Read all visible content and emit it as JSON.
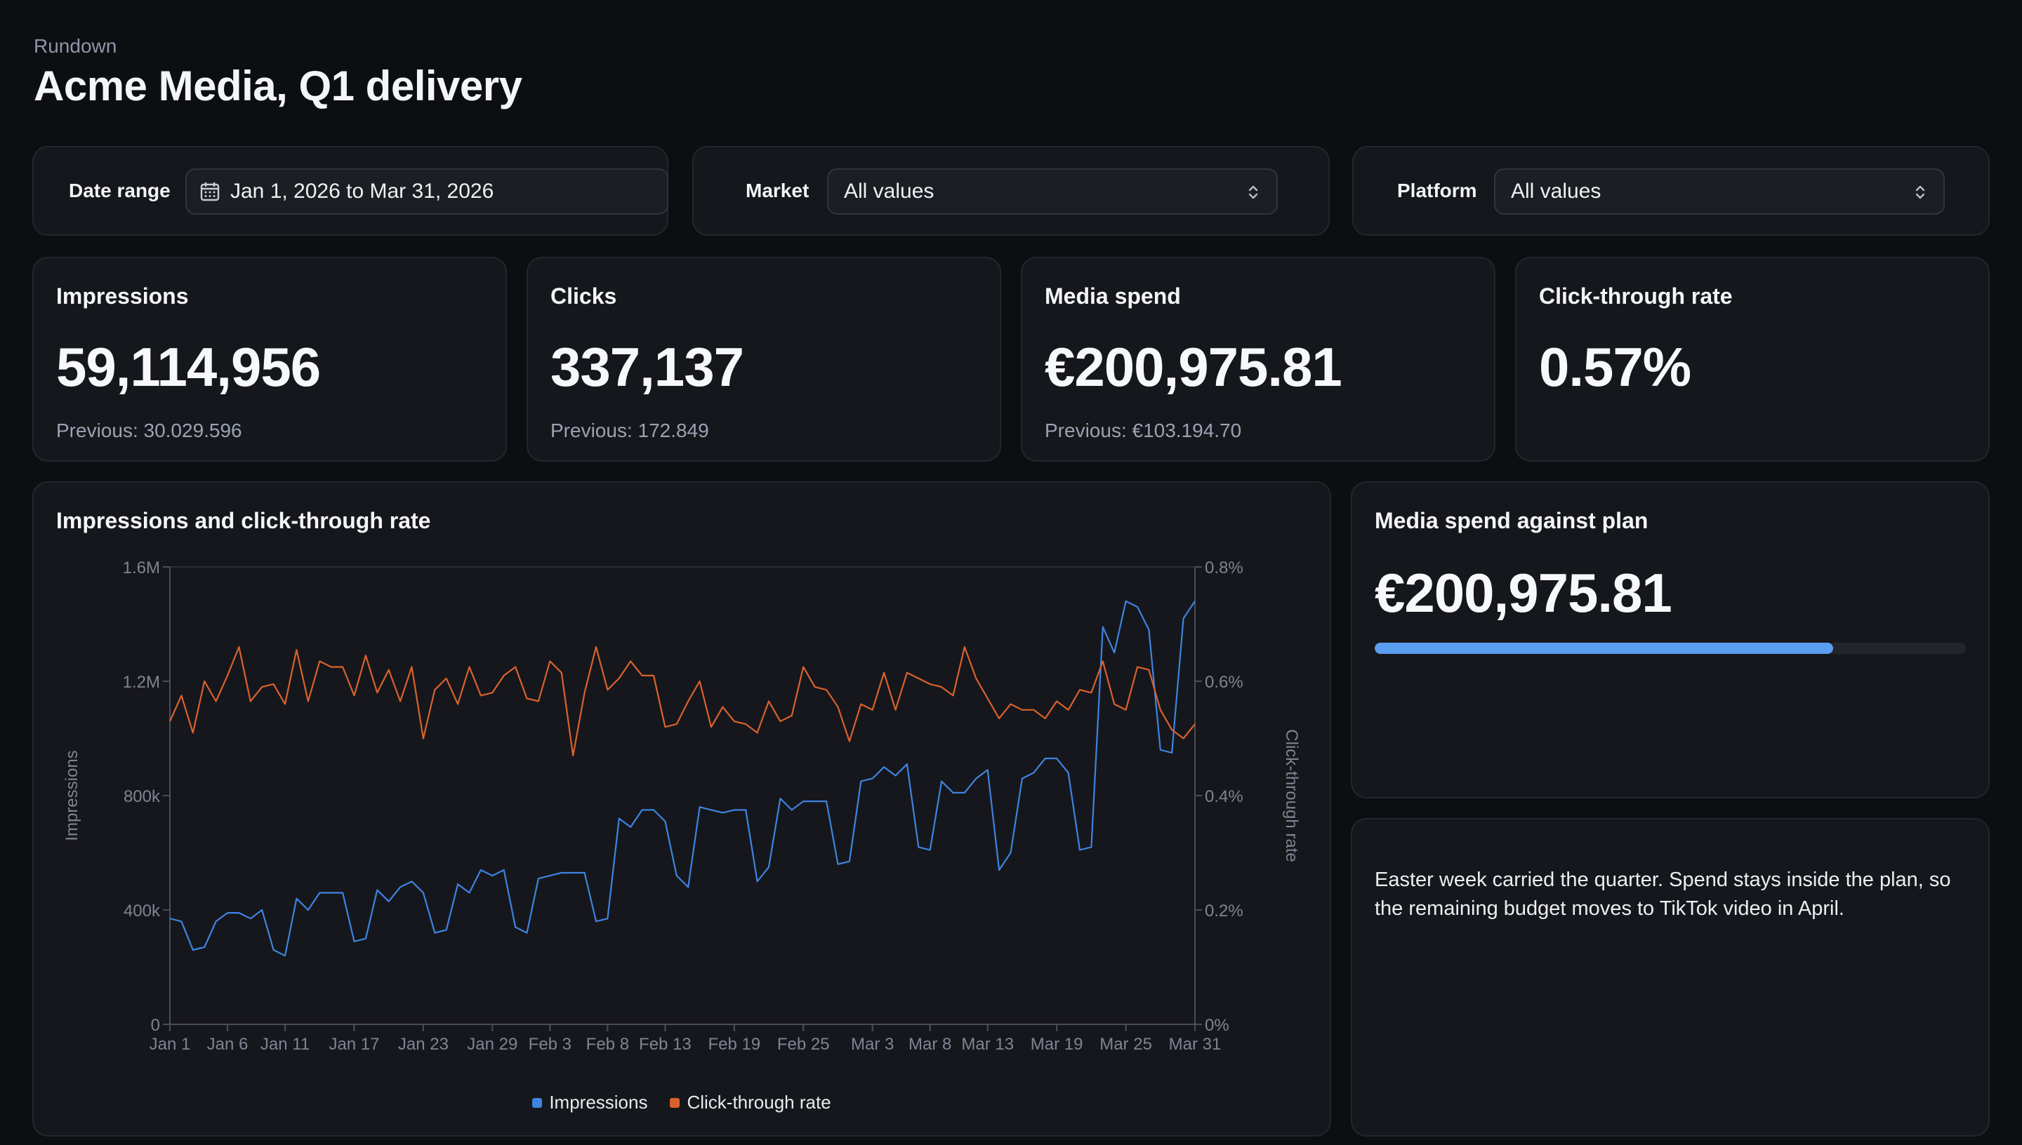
{
  "header": {
    "eyebrow": "Rundown",
    "title": "Acme Media, Q1 delivery"
  },
  "filters": {
    "date_range": {
      "label": "Date range",
      "value": "Jan 1, 2026 to Mar 31, 2026",
      "icon": "calendar-icon"
    },
    "market": {
      "label": "Market",
      "value": "All values",
      "icon": "chevron-up-down-icon"
    },
    "platform": {
      "label": "Platform",
      "value": "All values",
      "icon": "chevron-up-down-icon"
    }
  },
  "kpis": [
    {
      "label": "Impressions",
      "value": "59,114,956",
      "previous": "Previous: 30.029.596"
    },
    {
      "label": "Clicks",
      "value": "337,137",
      "previous": "Previous: 172.849"
    },
    {
      "label": "Media spend",
      "value": "€200,975.81",
      "previous": "Previous: €103.194.70"
    },
    {
      "label": "Click-through rate",
      "value": "0.57%",
      "previous": ""
    }
  ],
  "chart": {
    "title": "Impressions and click-through rate",
    "legend": [
      "Impressions",
      "Click-through rate"
    ]
  },
  "plan": {
    "title": "Media spend against plan",
    "value": "€200,975.81",
    "progress_fraction": 0.775
  },
  "note": {
    "text": "Easter week carried the quarter. Spend stays inside the plan, so the remaining budget moves to TikTok video in April."
  },
  "colors": {
    "impressions": "#3d84e0",
    "ctr": "#d9622c",
    "progress": "#5b9ef0"
  },
  "chart_data": {
    "type": "line",
    "x_tick_labels": [
      "Jan 1",
      "Jan 6",
      "Jan 11",
      "Jan 17",
      "Jan 23",
      "Jan 29",
      "Feb 3",
      "Feb 8",
      "Feb 13",
      "Feb 19",
      "Feb 25",
      "Mar 3",
      "Mar 8",
      "Mar 13",
      "Mar 19",
      "Mar 25",
      "Mar 31"
    ],
    "x": [
      "Jan 1",
      "Jan 2",
      "Jan 3",
      "Jan 4",
      "Jan 5",
      "Jan 6",
      "Jan 7",
      "Jan 8",
      "Jan 9",
      "Jan 10",
      "Jan 11",
      "Jan 12",
      "Jan 13",
      "Jan 14",
      "Jan 15",
      "Jan 16",
      "Jan 17",
      "Jan 18",
      "Jan 19",
      "Jan 20",
      "Jan 21",
      "Jan 22",
      "Jan 23",
      "Jan 24",
      "Jan 25",
      "Jan 26",
      "Jan 27",
      "Jan 28",
      "Jan 29",
      "Jan 30",
      "Jan 31",
      "Feb 1",
      "Feb 2",
      "Feb 3",
      "Feb 4",
      "Feb 5",
      "Feb 6",
      "Feb 7",
      "Feb 8",
      "Feb 9",
      "Feb 10",
      "Feb 11",
      "Feb 12",
      "Feb 13",
      "Feb 14",
      "Feb 15",
      "Feb 16",
      "Feb 17",
      "Feb 18",
      "Feb 19",
      "Feb 20",
      "Feb 21",
      "Feb 22",
      "Feb 23",
      "Feb 24",
      "Feb 25",
      "Feb 26",
      "Feb 27",
      "Feb 28",
      "Mar 1",
      "Mar 2",
      "Mar 3",
      "Mar 4",
      "Mar 5",
      "Mar 6",
      "Mar 7",
      "Mar 8",
      "Mar 9",
      "Mar 10",
      "Mar 11",
      "Mar 12",
      "Mar 13",
      "Mar 14",
      "Mar 15",
      "Mar 16",
      "Mar 17",
      "Mar 18",
      "Mar 19",
      "Mar 20",
      "Mar 21",
      "Mar 22",
      "Mar 23",
      "Mar 24",
      "Mar 25",
      "Mar 26",
      "Mar 27",
      "Mar 28",
      "Mar 29",
      "Mar 30",
      "Mar 31"
    ],
    "series": [
      {
        "name": "Impressions",
        "axis": "left",
        "values": [
          370000,
          360000,
          260000,
          270000,
          360000,
          390000,
          390000,
          370000,
          400000,
          260000,
          240000,
          440000,
          400000,
          460000,
          460000,
          460000,
          290000,
          300000,
          470000,
          430000,
          480000,
          500000,
          460000,
          320000,
          330000,
          490000,
          460000,
          540000,
          520000,
          540000,
          340000,
          320000,
          510000,
          520000,
          530000,
          530000,
          530000,
          360000,
          370000,
          720000,
          690000,
          750000,
          750000,
          710000,
          520000,
          480000,
          760000,
          750000,
          740000,
          750000,
          750000,
          500000,
          550000,
          790000,
          750000,
          780000,
          780000,
          780000,
          560000,
          570000,
          850000,
          860000,
          900000,
          870000,
          910000,
          620000,
          610000,
          850000,
          810000,
          810000,
          860000,
          890000,
          540000,
          600000,
          860000,
          880000,
          930000,
          930000,
          880000,
          610000,
          620000,
          1390000,
          1300000,
          1480000,
          1460000,
          1380000,
          960000,
          950000,
          1420000,
          1480000
        ]
      },
      {
        "name": "Click-through rate",
        "axis": "right",
        "values": [
          0.53,
          0.575,
          0.51,
          0.6,
          0.565,
          0.61,
          0.66,
          0.565,
          0.59,
          0.595,
          0.56,
          0.655,
          0.565,
          0.635,
          0.625,
          0.625,
          0.575,
          0.645,
          0.58,
          0.62,
          0.565,
          0.625,
          0.5,
          0.585,
          0.605,
          0.56,
          0.625,
          0.575,
          0.58,
          0.61,
          0.625,
          0.57,
          0.565,
          0.635,
          0.615,
          0.47,
          0.58,
          0.66,
          0.585,
          0.605,
          0.635,
          0.61,
          0.61,
          0.52,
          0.525,
          0.565,
          0.6,
          0.52,
          0.555,
          0.53,
          0.525,
          0.51,
          0.565,
          0.53,
          0.54,
          0.625,
          0.59,
          0.585,
          0.555,
          0.495,
          0.56,
          0.55,
          0.615,
          0.55,
          0.615,
          0.605,
          0.595,
          0.59,
          0.575,
          0.66,
          0.605,
          0.57,
          0.535,
          0.56,
          0.55,
          0.55,
          0.535,
          0.565,
          0.55,
          0.585,
          0.58,
          0.635,
          0.56,
          0.55,
          0.625,
          0.62,
          0.55,
          0.515,
          0.5,
          0.525
        ]
      }
    ],
    "y_left": {
      "label": "Impressions",
      "range": [
        0,
        1600000
      ],
      "ticks": [
        "0",
        "400k",
        "800k",
        "1.2M",
        "1.6M"
      ]
    },
    "y_right": {
      "label": "Click-through rate",
      "range": [
        0,
        0.8
      ],
      "ticks": [
        "0%",
        "0.2%",
        "0.4%",
        "0.6%",
        "0.8%"
      ]
    },
    "grid": false,
    "legend_position": "bottom-center"
  }
}
